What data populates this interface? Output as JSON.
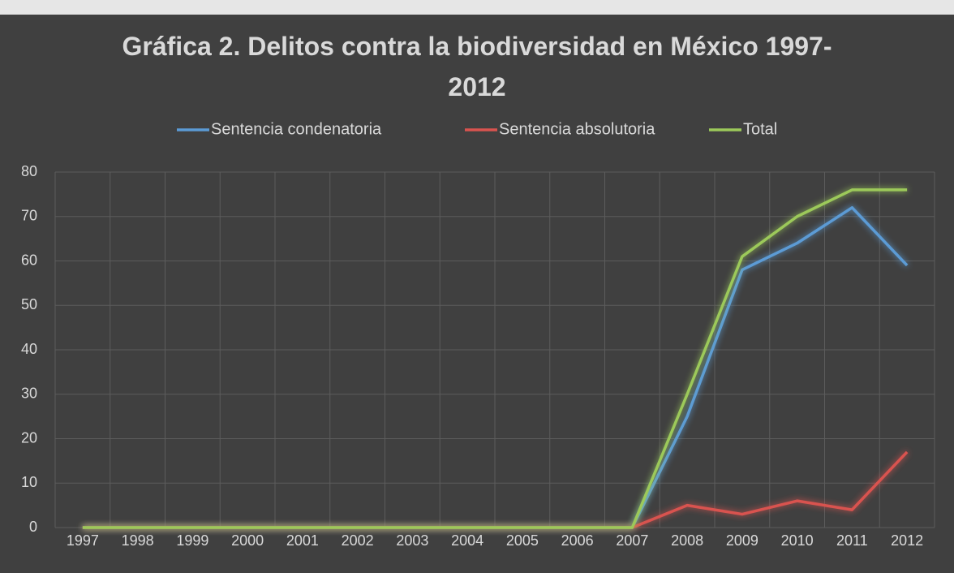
{
  "chart_data": {
    "type": "line",
    "title": "Gráfica 2. Delitos contra la biodiversidad en México 1997-2012",
    "categories": [
      "1997",
      "1998",
      "1999",
      "2000",
      "2001",
      "2002",
      "2003",
      "2004",
      "2005",
      "2006",
      "2007",
      "2008",
      "2009",
      "2010",
      "2011",
      "2012"
    ],
    "series": [
      {
        "name": "Sentencia condenatoria",
        "color": "#5b9bd5",
        "values": [
          0,
          0,
          0,
          0,
          0,
          0,
          0,
          0,
          0,
          0,
          0,
          25,
          58,
          64,
          72,
          59
        ]
      },
      {
        "name": "Sentencia absolutoria",
        "color": "#d9534f",
        "values": [
          0,
          0,
          0,
          0,
          0,
          0,
          0,
          0,
          0,
          0,
          0,
          5,
          3,
          6,
          4,
          17
        ]
      },
      {
        "name": "Total",
        "color": "#9cc95a",
        "values": [
          0,
          0,
          0,
          0,
          0,
          0,
          0,
          0,
          0,
          0,
          0,
          30,
          61,
          70,
          76,
          76
        ]
      }
    ],
    "ylim": [
      0,
      80
    ],
    "yticks": [
      0,
      10,
      20,
      30,
      40,
      50,
      60,
      70,
      80
    ],
    "grid": true,
    "legend": "top"
  }
}
